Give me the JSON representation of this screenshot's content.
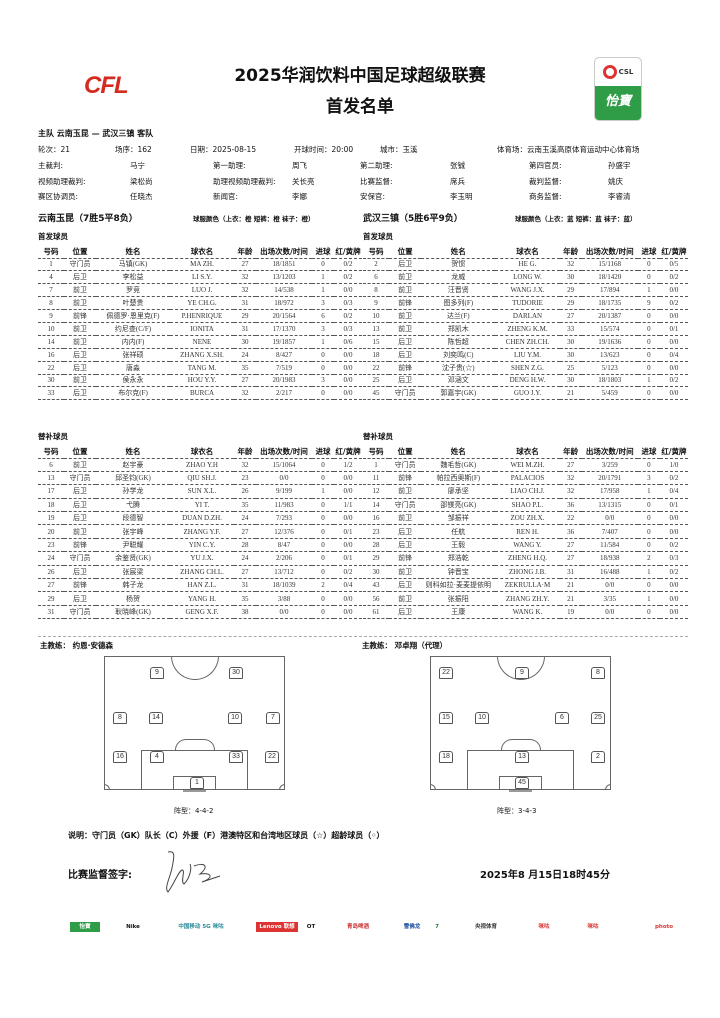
{
  "header": {
    "title": "2025华润饮料中国足球超级联赛",
    "subtitle": "首发名单",
    "left_logo": "CFL",
    "right_logo": "CSL 怡寶"
  },
  "match": {
    "fixture": "主队 云南玉昆 — 武汉三镇 客队",
    "round": "轮次：21",
    "match_no": "场序：162",
    "date": "日期：2025-08-15",
    "kickoff": "开球时间：20:00",
    "city": "城市：玉溪",
    "stadium": "体育场：云南玉溪高原体育运动中心体育场"
  },
  "officials": [
    [
      "主裁判:",
      "马宁",
      "第一助理:",
      "周飞",
      "第二助理:",
      "张铖",
      "第四官员:",
      "孙盛宇"
    ],
    [
      "视频助理裁判:",
      "梁松尚",
      "助理视频助理裁判:",
      "关长亮",
      "比赛监督:",
      "席兵",
      "裁判监督:",
      "姚庆"
    ],
    [
      "赛区协调员:",
      "任晓杰",
      "新闻官:",
      "李娜",
      "安保官:",
      "李玉明",
      "商务监督:",
      "李睿清"
    ]
  ],
  "columns": [
    "号码",
    "位置",
    "姓名",
    "球衣名",
    "年龄",
    "出场次数/时间",
    "进球",
    "红/黄牌"
  ],
  "home": {
    "team": "云南玉昆（7胜5平8负）",
    "kit": "球服颜色（上衣：橙 短裤：橙 袜子：橙）",
    "starters_label": "首发球员",
    "subs_label": "替补球员",
    "starters": [
      [
        "1",
        "守门员",
        "马镇(GK)",
        "MA ZH.",
        "27",
        "18/1851",
        "0",
        "0/2"
      ],
      [
        "4",
        "后卫",
        "李松益",
        "LI S.Y.",
        "32",
        "13/1203",
        "1",
        "0/2"
      ],
      [
        "7",
        "前卫",
        "罗竞",
        "LUO J.",
        "32",
        "14/538",
        "1",
        "0/0"
      ],
      [
        "8",
        "前卫",
        "叶楚贵",
        "YE CH.G.",
        "31",
        "18/972",
        "3",
        "0/3"
      ],
      [
        "9",
        "前锋",
        "佩德罗·恩里克(F)",
        "P.HENRIQUE",
        "29",
        "20/1564",
        "6",
        "0/2"
      ],
      [
        "10",
        "前卫",
        "约尼查(C/F)",
        "IONITA",
        "31",
        "17/1370",
        "3",
        "0/3"
      ],
      [
        "14",
        "前卫",
        "内内(F)",
        "NENE",
        "30",
        "19/1857",
        "1",
        "0/6"
      ],
      [
        "16",
        "后卫",
        "张祥硕",
        "ZHANG X.SH.",
        "24",
        "8/427",
        "0",
        "0/0"
      ],
      [
        "22",
        "后卫",
        "唐淼",
        "TANG M.",
        "35",
        "7/519",
        "0",
        "0/0"
      ],
      [
        "30",
        "前卫",
        "侯永永",
        "HOU Y.Y.",
        "27",
        "20/1983",
        "3",
        "0/0"
      ],
      [
        "33",
        "后卫",
        "布尔克(F)",
        "BURCA",
        "32",
        "2/217",
        "0",
        "0/0"
      ]
    ],
    "subs": [
      [
        "6",
        "前卫",
        "赵宇豪",
        "ZHAO Y.H",
        "32",
        "15/1064",
        "0",
        "1/2"
      ],
      [
        "13",
        "守门员",
        "邱圣钧(GK)",
        "QIU SH.J.",
        "23",
        "0/0",
        "0",
        "0/0"
      ],
      [
        "17",
        "后卫",
        "孙学龙",
        "SUN X.L.",
        "26",
        "9/199",
        "1",
        "0/0"
      ],
      [
        "18",
        "后卫",
        "弋腾",
        "YI T.",
        "35",
        "11/983",
        "0",
        "1/1"
      ],
      [
        "19",
        "后卫",
        "段德智",
        "DUAN D.ZH.",
        "24",
        "7/293",
        "0",
        "0/0"
      ],
      [
        "20",
        "前卫",
        "张宇峰",
        "ZHANG Y.F.",
        "27",
        "12/376",
        "0",
        "0/1"
      ],
      [
        "23",
        "前锋",
        "尹聪耀",
        "YIN C.Y.",
        "28",
        "8/47",
        "0",
        "0/0"
      ],
      [
        "24",
        "守门员",
        "余鉴贤(GK)",
        "YU J.X.",
        "24",
        "2/206",
        "0",
        "0/1"
      ],
      [
        "26",
        "后卫",
        "张宸梁",
        "ZHANG CH.L.",
        "27",
        "13/712",
        "0",
        "0/2"
      ],
      [
        "27",
        "前锋",
        "韩子龙",
        "HAN Z.L.",
        "31",
        "18/1039",
        "2",
        "0/4"
      ],
      [
        "29",
        "后卫",
        "杨贺",
        "YANG H.",
        "35",
        "3/88",
        "0",
        "0/0"
      ],
      [
        "31",
        "守门员",
        "耿晓峰(GK)",
        "GENG X.F.",
        "38",
        "0/0",
        "0",
        "0/0"
      ]
    ],
    "coach_label": "主教练：",
    "coach": "约恩·安德森",
    "formation": "阵型：4-4-2",
    "lineup": [
      [
        "9",
        "30"
      ],
      [
        "8",
        "14",
        "10",
        "7"
      ],
      [
        "16",
        "4",
        "33",
        "22"
      ],
      [
        "1"
      ]
    ]
  },
  "away": {
    "team": "武汉三镇（5胜6平9负）",
    "kit": "球服颜色（上衣：蓝 短裤：蓝 袜子：蓝）",
    "starters_label": "首发球员",
    "subs_label": "替补球员",
    "starters": [
      [
        "2",
        "后卫",
        "贺惯",
        "HE G.",
        "32",
        "15/1168",
        "0",
        "0/5"
      ],
      [
        "6",
        "前卫",
        "龙威",
        "LONG W.",
        "30",
        "18/1420",
        "0",
        "0/2"
      ],
      [
        "8",
        "前卫",
        "汪晋贤",
        "WANG J.X.",
        "29",
        "17/894",
        "1",
        "0/0"
      ],
      [
        "9",
        "前锋",
        "图多列(F)",
        "TUDORIE",
        "29",
        "18/1735",
        "9",
        "0/2"
      ],
      [
        "10",
        "前卫",
        "达兰(F)",
        "DARLAN",
        "27",
        "20/1387",
        "0",
        "0/0"
      ],
      [
        "13",
        "前卫",
        "郑凯木",
        "ZHENG K.M.",
        "33",
        "15/574",
        "0",
        "0/1"
      ],
      [
        "15",
        "后卫",
        "陈哲超",
        "CHEN ZH.CH.",
        "30",
        "19/1636",
        "0",
        "0/0"
      ],
      [
        "18",
        "后卫",
        "刘奕鸣(C)",
        "LIU Y.M.",
        "30",
        "13/623",
        "0",
        "0/4"
      ],
      [
        "22",
        "前锋",
        "沈子贵(☆)",
        "SHEN Z.G.",
        "25",
        "5/123",
        "0",
        "0/0"
      ],
      [
        "25",
        "后卫",
        "邓涵文",
        "DENG H.W.",
        "30",
        "18/1803",
        "1",
        "0/2"
      ],
      [
        "45",
        "守门员",
        "郭嘉宇(GK)",
        "GUO J.Y.",
        "21",
        "5/459",
        "0",
        "0/0"
      ]
    ],
    "subs": [
      [
        "1",
        "守门员",
        "魏毛哲(GK)",
        "WEI M.ZH.",
        "27",
        "3/259",
        "0",
        "1/0"
      ],
      [
        "11",
        "前锋",
        "帕拉西奥斯(F)",
        "PALACIOS",
        "32",
        "20/1791",
        "3",
        "0/2"
      ],
      [
        "12",
        "前卫",
        "廖承坚",
        "LIAO CH.J.",
        "32",
        "17/958",
        "1",
        "0/4"
      ],
      [
        "14",
        "守门员",
        "邵镤亮(GK)",
        "SHAO P.L.",
        "36",
        "13/1315",
        "0",
        "0/1"
      ],
      [
        "16",
        "前卫",
        "邹振祥",
        "ZOU ZH.X.",
        "22",
        "0/0",
        "0",
        "0/0"
      ],
      [
        "23",
        "后卫",
        "任航",
        "REN H.",
        "36",
        "7/407",
        "0",
        "0/0"
      ],
      [
        "28",
        "后卫",
        "王毅",
        "WANG Y.",
        "27",
        "11/584",
        "0",
        "0/2"
      ],
      [
        "29",
        "前锋",
        "郑浩乾",
        "ZHENG H.Q.",
        "27",
        "18/938",
        "2",
        "0/3"
      ],
      [
        "30",
        "前卫",
        "钟晋宝",
        "ZHONG J.B.",
        "31",
        "16/488",
        "1",
        "0/2"
      ],
      [
        "43",
        "后卫",
        "则科如拉·麦麦提依明",
        "ZEKRULLA·M",
        "21",
        "0/0",
        "0",
        "0/0"
      ],
      [
        "56",
        "前卫",
        "张振阳",
        "ZHANG ZH.Y.",
        "21",
        "3/35",
        "1",
        "0/0"
      ],
      [
        "61",
        "后卫",
        "王康",
        "WANG K.",
        "19",
        "0/0",
        "0",
        "0/0"
      ]
    ],
    "coach_label": "主教练：",
    "coach": "邓卓翔（代理）",
    "formation": "阵型：3-4-3",
    "lineup": [
      [
        "22",
        "9",
        "8"
      ],
      [
        "15",
        "10",
        "6",
        "25"
      ],
      [
        "18",
        "13",
        "2"
      ],
      [
        "45"
      ]
    ]
  },
  "footer": {
    "note": "说明：守门员（GK）队长（C）外援（F）港澳特区和台湾地区球员（☆）超龄球员（◦）",
    "signature_label": "比赛监督签字:",
    "timestamp": "2025年8 月15日18时45分",
    "sponsors": [
      "怡寶",
      "Nike",
      "中国移动 5G 咪咕",
      "Lenovo 联想",
      "OT",
      "青岛啤酒",
      "雪佛龙",
      "7",
      "央视体育",
      "咪咕",
      "咪咕",
      "photo"
    ]
  },
  "colors": {
    "cfl_red": "#d42a1f",
    "csl_green": "#2f9d48"
  }
}
